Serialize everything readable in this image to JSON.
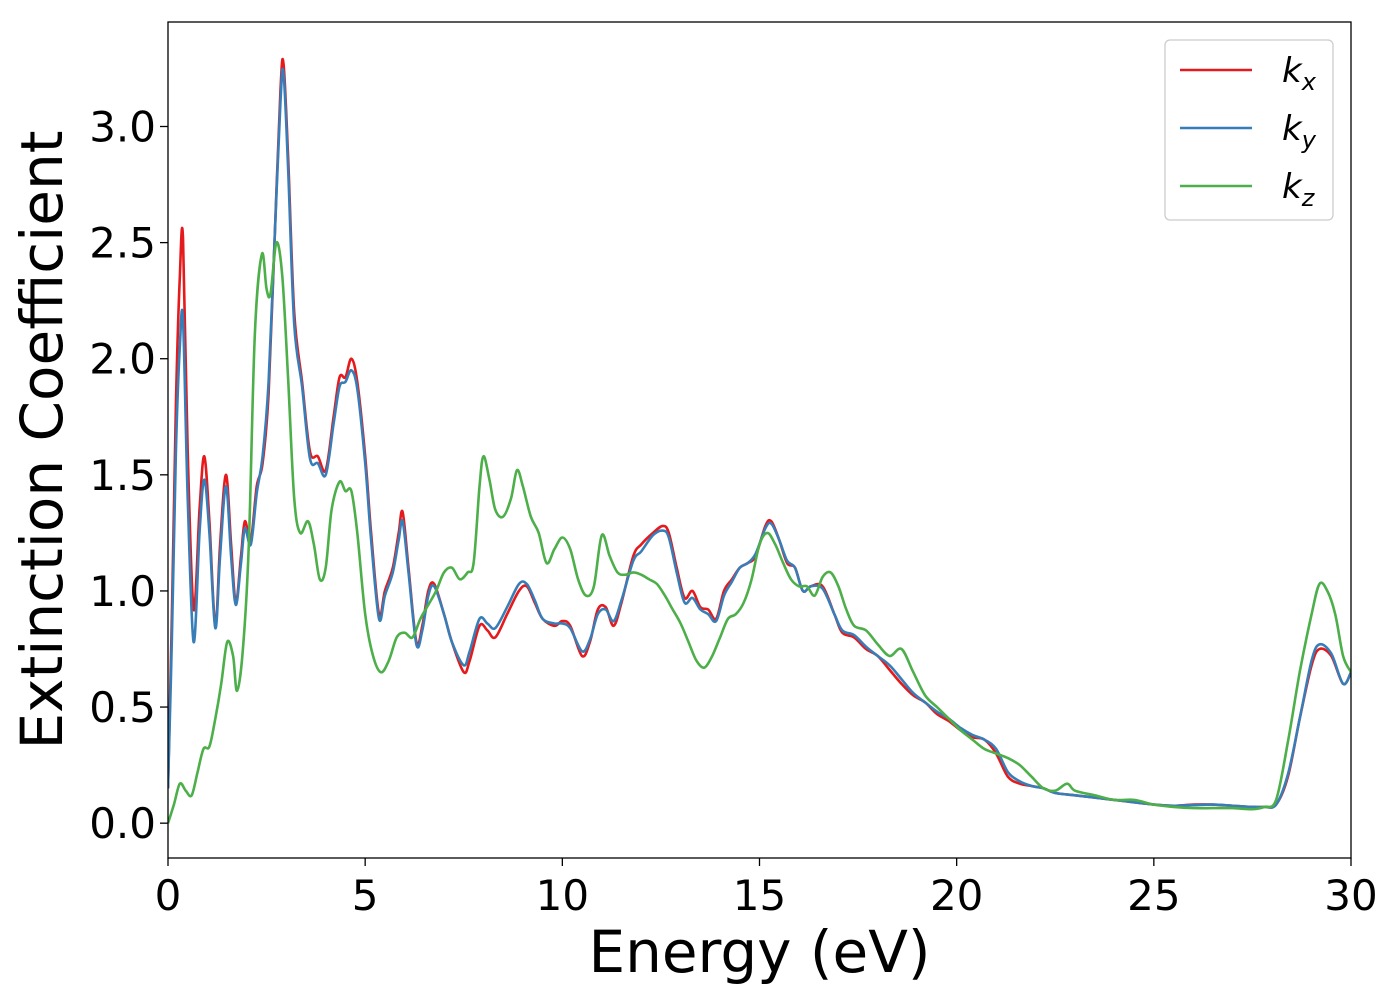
{
  "chart_data": {
    "type": "line",
    "title": "",
    "xlabel": "Energy (eV)",
    "ylabel": "Extinction Coefficient",
    "xlim": [
      0,
      30
    ],
    "ylim": [
      -0.15,
      3.45
    ],
    "xticks": [
      0,
      5,
      10,
      15,
      20,
      25,
      30
    ],
    "xtick_labels": [
      "0",
      "5",
      "10",
      "15",
      "20",
      "25",
      "30"
    ],
    "yticks": [
      0.0,
      0.5,
      1.0,
      1.5,
      2.0,
      2.5,
      3.0
    ],
    "ytick_labels": [
      "0.0",
      "0.5",
      "1.0",
      "1.5",
      "2.0",
      "2.5",
      "3.0"
    ],
    "grid": false,
    "legend_position": "top-right",
    "series": [
      {
        "name": "k",
        "sub": "x",
        "color": "#e41a1c",
        "x": [
          0,
          0.1,
          0.2,
          0.3,
          0.38,
          0.5,
          0.65,
          0.8,
          0.92,
          1.05,
          1.2,
          1.32,
          1.47,
          1.6,
          1.72,
          1.85,
          1.95,
          2.1,
          2.25,
          2.4,
          2.55,
          2.7,
          2.85,
          2.93,
          3.05,
          3.2,
          3.4,
          3.6,
          3.8,
          4.0,
          4.2,
          4.35,
          4.5,
          4.65,
          4.8,
          5.0,
          5.15,
          5.35,
          5.5,
          5.7,
          5.85,
          5.95,
          6.1,
          6.3,
          6.45,
          6.6,
          6.75,
          7.0,
          7.2,
          7.5,
          7.65,
          7.9,
          8.1,
          8.3,
          8.6,
          8.9,
          9.1,
          9.3,
          9.5,
          9.8,
          10.0,
          10.2,
          10.5,
          10.7,
          10.9,
          11.1,
          11.3,
          11.5,
          11.8,
          12.0,
          12.3,
          12.55,
          12.7,
          12.9,
          13.1,
          13.3,
          13.5,
          13.7,
          13.9,
          14.1,
          14.3,
          14.5,
          14.7,
          14.9,
          15.15,
          15.3,
          15.5,
          15.7,
          15.9,
          16.1,
          16.3,
          16.6,
          16.9,
          17.1,
          17.4,
          17.7,
          18.0,
          18.3,
          18.6,
          18.9,
          19.2,
          19.5,
          19.8,
          20.1,
          20.4,
          20.7,
          21.0,
          21.3,
          21.6,
          21.9,
          22.2,
          22.5,
          23.0,
          23.5,
          24.0,
          24.5,
          25.0,
          25.5,
          26.0,
          26.5,
          27.0,
          27.5,
          27.8,
          28.1,
          28.4,
          28.7,
          29.0,
          29.2,
          29.5,
          29.8,
          30.0
        ],
        "y": [
          0.15,
          0.9,
          1.8,
          2.35,
          2.52,
          1.6,
          0.92,
          1.35,
          1.58,
          1.3,
          0.85,
          1.2,
          1.5,
          1.2,
          0.95,
          1.15,
          1.3,
          1.22,
          1.45,
          1.55,
          1.85,
          2.5,
          3.15,
          3.27,
          2.85,
          2.2,
          1.9,
          1.6,
          1.58,
          1.52,
          1.75,
          1.92,
          1.92,
          2.0,
          1.9,
          1.58,
          1.25,
          0.9,
          1.0,
          1.1,
          1.25,
          1.34,
          1.1,
          0.78,
          0.85,
          1.0,
          1.03,
          0.9,
          0.78,
          0.65,
          0.7,
          0.85,
          0.83,
          0.8,
          0.9,
          1.0,
          1.02,
          0.95,
          0.88,
          0.85,
          0.87,
          0.85,
          0.72,
          0.78,
          0.92,
          0.93,
          0.85,
          0.95,
          1.15,
          1.2,
          1.25,
          1.28,
          1.25,
          1.1,
          0.97,
          1.0,
          0.93,
          0.92,
          0.88,
          1.0,
          1.05,
          1.1,
          1.12,
          1.15,
          1.28,
          1.3,
          1.22,
          1.12,
          1.1,
          1.0,
          1.02,
          1.02,
          0.9,
          0.82,
          0.8,
          0.75,
          0.72,
          0.66,
          0.6,
          0.55,
          0.52,
          0.47,
          0.44,
          0.4,
          0.37,
          0.36,
          0.3,
          0.2,
          0.17,
          0.16,
          0.15,
          0.13,
          0.12,
          0.11,
          0.1,
          0.09,
          0.08,
          0.075,
          0.08,
          0.08,
          0.075,
          0.07,
          0.07,
          0.08,
          0.2,
          0.45,
          0.68,
          0.75,
          0.72,
          0.6,
          0.65
        ]
      },
      {
        "name": "k",
        "sub": "y",
        "color": "#377eb8",
        "x": [
          0,
          0.1,
          0.2,
          0.3,
          0.38,
          0.5,
          0.65,
          0.8,
          0.92,
          1.05,
          1.2,
          1.32,
          1.47,
          1.6,
          1.72,
          1.85,
          1.95,
          2.1,
          2.25,
          2.4,
          2.55,
          2.7,
          2.85,
          2.93,
          3.05,
          3.2,
          3.4,
          3.6,
          3.8,
          4.0,
          4.2,
          4.35,
          4.5,
          4.65,
          4.8,
          5.0,
          5.15,
          5.35,
          5.5,
          5.7,
          5.85,
          5.95,
          6.1,
          6.3,
          6.45,
          6.6,
          6.75,
          7.0,
          7.2,
          7.5,
          7.65,
          7.9,
          8.1,
          8.3,
          8.6,
          8.9,
          9.1,
          9.3,
          9.5,
          9.8,
          10.0,
          10.2,
          10.5,
          10.7,
          10.9,
          11.1,
          11.3,
          11.5,
          11.8,
          12.0,
          12.3,
          12.55,
          12.7,
          12.9,
          13.1,
          13.3,
          13.5,
          13.7,
          13.9,
          14.1,
          14.3,
          14.5,
          14.7,
          14.9,
          15.15,
          15.3,
          15.5,
          15.7,
          15.9,
          16.1,
          16.3,
          16.6,
          16.9,
          17.1,
          17.4,
          17.7,
          18.0,
          18.3,
          18.6,
          18.9,
          19.2,
          19.5,
          19.8,
          20.1,
          20.4,
          20.7,
          21.0,
          21.3,
          21.6,
          21.9,
          22.2,
          22.5,
          23.0,
          23.5,
          24.0,
          24.5,
          25.0,
          25.5,
          26.0,
          26.5,
          27.0,
          27.5,
          27.8,
          28.1,
          28.4,
          28.7,
          29.0,
          29.2,
          29.5,
          29.8,
          30.0
        ],
        "y": [
          0.15,
          0.8,
          1.6,
          2.05,
          2.17,
          1.4,
          0.78,
          1.25,
          1.48,
          1.25,
          0.84,
          1.15,
          1.45,
          1.15,
          0.94,
          1.12,
          1.27,
          1.2,
          1.42,
          1.58,
          1.9,
          2.5,
          3.1,
          3.23,
          2.8,
          2.15,
          1.88,
          1.57,
          1.55,
          1.5,
          1.72,
          1.88,
          1.9,
          1.95,
          1.87,
          1.55,
          1.22,
          0.88,
          0.98,
          1.08,
          1.22,
          1.3,
          1.08,
          0.77,
          0.83,
          0.98,
          1.02,
          0.9,
          0.78,
          0.68,
          0.74,
          0.88,
          0.86,
          0.84,
          0.93,
          1.03,
          1.03,
          0.96,
          0.88,
          0.86,
          0.86,
          0.84,
          0.74,
          0.79,
          0.9,
          0.92,
          0.87,
          0.96,
          1.13,
          1.17,
          1.24,
          1.26,
          1.23,
          1.08,
          0.95,
          0.97,
          0.92,
          0.9,
          0.87,
          0.98,
          1.04,
          1.1,
          1.12,
          1.16,
          1.27,
          1.29,
          1.22,
          1.13,
          1.1,
          1.0,
          1.02,
          1.01,
          0.9,
          0.83,
          0.81,
          0.76,
          0.72,
          0.68,
          0.62,
          0.56,
          0.52,
          0.48,
          0.45,
          0.41,
          0.38,
          0.36,
          0.32,
          0.22,
          0.18,
          0.16,
          0.15,
          0.13,
          0.12,
          0.11,
          0.1,
          0.09,
          0.08,
          0.075,
          0.078,
          0.08,
          0.075,
          0.07,
          0.07,
          0.08,
          0.21,
          0.45,
          0.7,
          0.77,
          0.73,
          0.6,
          0.65
        ]
      },
      {
        "name": "k",
        "sub": "z",
        "color": "#4daf4a",
        "x": [
          0,
          0.15,
          0.3,
          0.45,
          0.6,
          0.75,
          0.9,
          1.05,
          1.2,
          1.35,
          1.5,
          1.65,
          1.75,
          1.9,
          2.05,
          2.2,
          2.38,
          2.5,
          2.6,
          2.75,
          2.9,
          3.05,
          3.2,
          3.35,
          3.55,
          3.7,
          3.85,
          4.0,
          4.15,
          4.35,
          4.5,
          4.65,
          4.8,
          5.0,
          5.2,
          5.4,
          5.6,
          5.8,
          6.0,
          6.2,
          6.4,
          6.6,
          6.8,
          7.0,
          7.2,
          7.4,
          7.6,
          7.75,
          7.9,
          8.0,
          8.15,
          8.3,
          8.5,
          8.7,
          8.85,
          9.0,
          9.2,
          9.4,
          9.6,
          9.8,
          10.0,
          10.2,
          10.4,
          10.6,
          10.8,
          11.0,
          11.2,
          11.4,
          11.6,
          11.8,
          12.0,
          12.2,
          12.4,
          12.6,
          12.8,
          13.0,
          13.2,
          13.4,
          13.6,
          13.8,
          14.0,
          14.2,
          14.4,
          14.6,
          14.8,
          15.0,
          15.2,
          15.4,
          15.6,
          15.8,
          16.0,
          16.2,
          16.4,
          16.6,
          16.8,
          17.0,
          17.2,
          17.4,
          17.7,
          18.0,
          18.3,
          18.6,
          18.9,
          19.2,
          19.5,
          19.8,
          20.1,
          20.4,
          20.7,
          21.0,
          21.3,
          21.6,
          21.9,
          22.2,
          22.5,
          22.8,
          23.0,
          23.5,
          24.0,
          24.5,
          25.0,
          25.5,
          26.0,
          26.5,
          27.0,
          27.5,
          27.8,
          28.1,
          28.4,
          28.7,
          29.0,
          29.2,
          29.4,
          29.6,
          29.8,
          30.0
        ],
        "y": [
          0.0,
          0.08,
          0.17,
          0.14,
          0.12,
          0.22,
          0.32,
          0.33,
          0.45,
          0.6,
          0.78,
          0.72,
          0.57,
          0.75,
          1.2,
          2.1,
          2.45,
          2.3,
          2.28,
          2.5,
          2.35,
          1.9,
          1.4,
          1.25,
          1.3,
          1.2,
          1.05,
          1.1,
          1.35,
          1.47,
          1.43,
          1.43,
          1.25,
          0.9,
          0.72,
          0.65,
          0.7,
          0.8,
          0.82,
          0.8,
          0.88,
          0.94,
          1.0,
          1.08,
          1.1,
          1.05,
          1.08,
          1.12,
          1.45,
          1.58,
          1.48,
          1.35,
          1.32,
          1.4,
          1.52,
          1.45,
          1.32,
          1.25,
          1.12,
          1.18,
          1.23,
          1.18,
          1.05,
          0.98,
          1.02,
          1.24,
          1.15,
          1.08,
          1.07,
          1.08,
          1.07,
          1.05,
          1.03,
          0.98,
          0.92,
          0.86,
          0.78,
          0.7,
          0.67,
          0.72,
          0.8,
          0.88,
          0.9,
          0.95,
          1.05,
          1.2,
          1.25,
          1.2,
          1.12,
          1.05,
          1.02,
          1.02,
          0.98,
          1.06,
          1.08,
          1.02,
          0.92,
          0.85,
          0.83,
          0.77,
          0.72,
          0.75,
          0.65,
          0.55,
          0.5,
          0.45,
          0.4,
          0.36,
          0.32,
          0.3,
          0.28,
          0.25,
          0.2,
          0.15,
          0.14,
          0.17,
          0.14,
          0.12,
          0.1,
          0.1,
          0.08,
          0.07,
          0.065,
          0.065,
          0.065,
          0.06,
          0.07,
          0.1,
          0.35,
          0.65,
          0.9,
          1.03,
          1.0,
          0.9,
          0.72,
          0.65
        ]
      }
    ]
  }
}
